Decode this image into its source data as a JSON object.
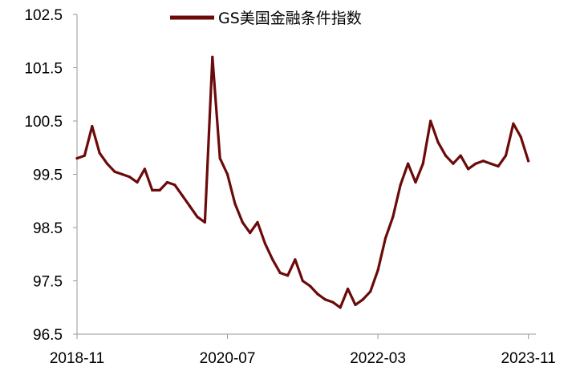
{
  "chart_data": {
    "type": "line",
    "title": "",
    "xlabel": "",
    "ylabel": "",
    "ylim": [
      96.5,
      102.5
    ],
    "yticks": [
      96.5,
      97.5,
      98.5,
      99.5,
      100.5,
      101.5,
      102.5
    ],
    "ytick_labels": [
      "96.5",
      "97.5",
      "98.5",
      "99.5",
      "100.5",
      "101.5",
      "102.5"
    ],
    "xlim": [
      "2018-11",
      "2023-12"
    ],
    "xticks": [
      "2018-11",
      "2020-07",
      "2022-03",
      "2023-11"
    ],
    "xtick_labels": [
      "2018-11",
      "2020-07",
      "2022-03",
      "2023-11"
    ],
    "grid": false,
    "legend": "top-center",
    "colors": {
      "series": "#6b0a0a",
      "axis": "#999999"
    },
    "series": [
      {
        "name": "GS美国金融条件指数",
        "points": [
          [
            "2018-11",
            99.8
          ],
          [
            "2018-12",
            99.85
          ],
          [
            "2019-01",
            100.4
          ],
          [
            "2019-02",
            99.9
          ],
          [
            "2019-03",
            99.7
          ],
          [
            "2019-04",
            99.55
          ],
          [
            "2019-05",
            99.5
          ],
          [
            "2019-06",
            99.45
          ],
          [
            "2019-07",
            99.35
          ],
          [
            "2019-08",
            99.6
          ],
          [
            "2019-09",
            99.2
          ],
          [
            "2019-10",
            99.2
          ],
          [
            "2019-11",
            99.35
          ],
          [
            "2019-12",
            99.3
          ],
          [
            "2020-01",
            99.1
          ],
          [
            "2020-02",
            98.9
          ],
          [
            "2020-03",
            98.7
          ],
          [
            "2020-04",
            98.6
          ],
          [
            "2020-05",
            101.7
          ],
          [
            "2020-06",
            99.8
          ],
          [
            "2020-07",
            99.5
          ],
          [
            "2020-08",
            98.95
          ],
          [
            "2020-09",
            98.6
          ],
          [
            "2020-10",
            98.4
          ],
          [
            "2020-11",
            98.6
          ],
          [
            "2020-12",
            98.2
          ],
          [
            "2021-01",
            97.9
          ],
          [
            "2021-02",
            97.65
          ],
          [
            "2021-03",
            97.6
          ],
          [
            "2021-04",
            97.9
          ],
          [
            "2021-05",
            97.5
          ],
          [
            "2021-06",
            97.4
          ],
          [
            "2021-07",
            97.25
          ],
          [
            "2021-08",
            97.15
          ],
          [
            "2021-09",
            97.1
          ],
          [
            "2021-10",
            97.0
          ],
          [
            "2021-11",
            97.35
          ],
          [
            "2021-12",
            97.05
          ],
          [
            "2022-01",
            97.15
          ],
          [
            "2022-02",
            97.3
          ],
          [
            "2022-03",
            97.7
          ],
          [
            "2022-04",
            98.3
          ],
          [
            "2022-05",
            98.7
          ],
          [
            "2022-06",
            99.3
          ],
          [
            "2022-07",
            99.7
          ],
          [
            "2022-08",
            99.35
          ],
          [
            "2022-09",
            99.7
          ],
          [
            "2022-10",
            100.5
          ],
          [
            "2022-11",
            100.1
          ],
          [
            "2022-12",
            99.85
          ],
          [
            "2023-01",
            99.7
          ],
          [
            "2023-02",
            99.85
          ],
          [
            "2023-03",
            99.6
          ],
          [
            "2023-04",
            99.7
          ],
          [
            "2023-05",
            99.75
          ],
          [
            "2023-06",
            99.7
          ],
          [
            "2023-07",
            99.65
          ],
          [
            "2023-08",
            99.85
          ],
          [
            "2023-09",
            100.45
          ],
          [
            "2023-10",
            100.2
          ],
          [
            "2023-11",
            99.75
          ]
        ]
      }
    ]
  }
}
